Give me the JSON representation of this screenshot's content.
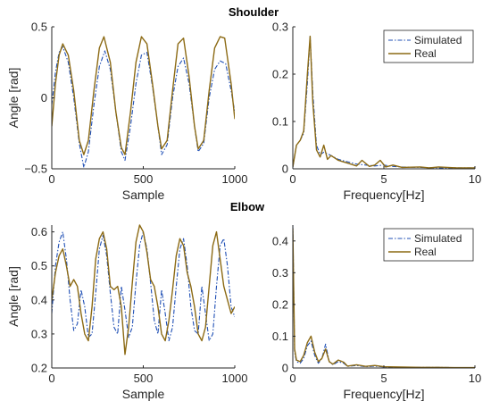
{
  "colors": {
    "simulated": "#1f4fb5",
    "real": "#8c6a14",
    "axis": "#262626"
  },
  "chart_data": [
    {
      "id": "shoulder-time",
      "type": "line",
      "section_title": "Shoulder",
      "xlabel": "Sample",
      "ylabel": "Angle [rad]",
      "xlim": [
        0,
        1000
      ],
      "ylim": [
        -0.5,
        0.5
      ],
      "xticks": [
        0,
        500,
        1000
      ],
      "yticks": [
        -0.5,
        0,
        0.5
      ],
      "xtick_labels": [
        "0",
        "500",
        "1000"
      ],
      "ytick_labels": [
        "−0.5",
        "0",
        "0.5"
      ],
      "grid": false,
      "legend": null,
      "series": [
        {
          "name": "Simulated",
          "style": "dashdot",
          "x": [
            0,
            20,
            40,
            60,
            90,
            120,
            150,
            175,
            200,
            230,
            260,
            290,
            320,
            350,
            380,
            400,
            430,
            460,
            490,
            520,
            550,
            580,
            600,
            630,
            660,
            690,
            720,
            750,
            780,
            800,
            830,
            860,
            890,
            920,
            950,
            980,
            1000
          ],
          "y": [
            -0.05,
            0.18,
            0.32,
            0.36,
            0.25,
            0.0,
            -0.32,
            -0.49,
            -0.38,
            -0.05,
            0.22,
            0.33,
            0.2,
            -0.1,
            -0.38,
            -0.44,
            -0.2,
            0.1,
            0.3,
            0.32,
            0.08,
            -0.2,
            -0.4,
            -0.33,
            0.0,
            0.22,
            0.28,
            0.1,
            -0.2,
            -0.38,
            -0.32,
            0.0,
            0.2,
            0.26,
            0.24,
            0.05,
            -0.1
          ]
        },
        {
          "name": "Real",
          "style": "solid",
          "x": [
            0,
            20,
            40,
            60,
            90,
            120,
            150,
            175,
            200,
            230,
            260,
            285,
            320,
            350,
            380,
            400,
            430,
            460,
            490,
            520,
            550,
            580,
            600,
            630,
            660,
            690,
            720,
            750,
            780,
            800,
            830,
            860,
            890,
            920,
            945,
            980,
            1000
          ],
          "y": [
            -0.2,
            0.1,
            0.3,
            0.38,
            0.3,
            0.05,
            -0.3,
            -0.4,
            -0.3,
            0.05,
            0.35,
            0.43,
            0.25,
            -0.1,
            -0.35,
            -0.4,
            -0.1,
            0.25,
            0.43,
            0.38,
            0.1,
            -0.2,
            -0.36,
            -0.3,
            0.05,
            0.38,
            0.42,
            0.15,
            -0.2,
            -0.36,
            -0.3,
            0.05,
            0.35,
            0.43,
            0.42,
            0.1,
            -0.15
          ]
        }
      ]
    },
    {
      "id": "shoulder-freq",
      "type": "line",
      "xlabel": "Frequency[Hz]",
      "ylabel": "",
      "xlim": [
        0,
        10
      ],
      "ylim": [
        0,
        0.3
      ],
      "xticks": [
        0,
        5,
        10
      ],
      "yticks": [
        0,
        0.1,
        0.2,
        0.3
      ],
      "xtick_labels": [
        "0",
        "5",
        "10"
      ],
      "ytick_labels": [
        "0",
        "0.1",
        "0.2",
        "0.3"
      ],
      "grid": false,
      "legend": "top-right",
      "series": [
        {
          "name": "Simulated",
          "style": "dashdot",
          "x": [
            0,
            0.2,
            0.4,
            0.6,
            0.8,
            0.95,
            1.1,
            1.3,
            1.5,
            1.7,
            2.0,
            2.5,
            3.0,
            3.5,
            4.0,
            4.5,
            5.0,
            5.5,
            6.0,
            7.0,
            8.0,
            9.0,
            10.0
          ],
          "y": [
            0.003,
            0.05,
            0.06,
            0.075,
            0.18,
            0.28,
            0.16,
            0.05,
            0.03,
            0.035,
            0.03,
            0.02,
            0.015,
            0.01,
            0.008,
            0.006,
            0.008,
            0.005,
            0.004,
            0.003,
            0.002,
            0.002,
            0.002
          ]
        },
        {
          "name": "Real",
          "style": "solid",
          "x": [
            0,
            0.2,
            0.4,
            0.6,
            0.8,
            0.95,
            1.1,
            1.3,
            1.5,
            1.7,
            1.9,
            2.1,
            2.5,
            3.0,
            3.5,
            3.8,
            4.2,
            4.5,
            4.8,
            5.1,
            5.5,
            6.0,
            7.0,
            7.5,
            8.0,
            9.0,
            10.0
          ],
          "y": [
            0.004,
            0.05,
            0.06,
            0.08,
            0.2,
            0.28,
            0.14,
            0.04,
            0.025,
            0.05,
            0.02,
            0.028,
            0.018,
            0.012,
            0.006,
            0.018,
            0.005,
            0.008,
            0.018,
            0.004,
            0.008,
            0.003,
            0.004,
            0.002,
            0.004,
            0.002,
            0.002
          ]
        }
      ]
    },
    {
      "id": "elbow-time",
      "type": "line",
      "section_title": "Elbow",
      "xlabel": "Sample",
      "ylabel": "Angle [rad]",
      "xlim": [
        0,
        1000
      ],
      "ylim": [
        0.2,
        0.62
      ],
      "xticks": [
        0,
        500,
        1000
      ],
      "yticks": [
        0.2,
        0.3,
        0.4,
        0.5,
        0.6
      ],
      "xtick_labels": [
        "0",
        "500",
        "1000"
      ],
      "ytick_labels": [
        "0.2",
        "0.3",
        "0.4",
        "0.5",
        "0.6"
      ],
      "grid": false,
      "legend": null,
      "series": [
        {
          "name": "Simulated",
          "style": "dashdot",
          "x": [
            0,
            20,
            40,
            60,
            80,
            100,
            120,
            140,
            160,
            180,
            200,
            220,
            240,
            260,
            280,
            300,
            320,
            340,
            360,
            380,
            400,
            420,
            440,
            460,
            480,
            500,
            520,
            540,
            560,
            580,
            600,
            620,
            640,
            660,
            680,
            700,
            720,
            740,
            760,
            780,
            800,
            820,
            840,
            860,
            880,
            900,
            920,
            940,
            960,
            980,
            1000
          ],
          "y": [
            0.36,
            0.5,
            0.57,
            0.6,
            0.52,
            0.4,
            0.31,
            0.33,
            0.43,
            0.38,
            0.29,
            0.3,
            0.42,
            0.55,
            0.59,
            0.53,
            0.42,
            0.32,
            0.3,
            0.44,
            0.37,
            0.29,
            0.32,
            0.45,
            0.56,
            0.6,
            0.55,
            0.45,
            0.34,
            0.3,
            0.43,
            0.36,
            0.28,
            0.32,
            0.44,
            0.55,
            0.58,
            0.5,
            0.38,
            0.31,
            0.3,
            0.44,
            0.36,
            0.28,
            0.3,
            0.44,
            0.56,
            0.58,
            0.5,
            0.38,
            0.35
          ]
        },
        {
          "name": "Real",
          "style": "solid",
          "x": [
            0,
            20,
            40,
            60,
            80,
            100,
            120,
            140,
            160,
            180,
            200,
            220,
            240,
            260,
            280,
            300,
            320,
            340,
            360,
            380,
            400,
            420,
            440,
            460,
            480,
            500,
            520,
            540,
            560,
            580,
            600,
            620,
            640,
            660,
            680,
            700,
            720,
            740,
            760,
            780,
            800,
            820,
            840,
            860,
            880,
            900,
            920,
            940,
            960,
            980,
            1000
          ],
          "y": [
            0.4,
            0.48,
            0.53,
            0.55,
            0.5,
            0.44,
            0.46,
            0.44,
            0.36,
            0.3,
            0.28,
            0.38,
            0.52,
            0.58,
            0.6,
            0.55,
            0.44,
            0.43,
            0.44,
            0.38,
            0.24,
            0.32,
            0.45,
            0.57,
            0.62,
            0.6,
            0.54,
            0.46,
            0.44,
            0.38,
            0.3,
            0.28,
            0.34,
            0.43,
            0.53,
            0.58,
            0.56,
            0.48,
            0.44,
            0.38,
            0.3,
            0.28,
            0.32,
            0.44,
            0.56,
            0.6,
            0.52,
            0.44,
            0.4,
            0.36,
            0.38
          ]
        }
      ]
    },
    {
      "id": "elbow-freq",
      "type": "line",
      "xlabel": "Frequency[Hz]",
      "ylabel": "",
      "xlim": [
        0,
        10
      ],
      "ylim": [
        0,
        0.45
      ],
      "xticks": [
        0,
        5,
        10
      ],
      "yticks": [
        0,
        0.1,
        0.2,
        0.3,
        0.4
      ],
      "xtick_labels": [
        "0",
        "5",
        "10"
      ],
      "ytick_labels": [
        "0",
        "0.1",
        "0.2",
        "0.3",
        "0.4"
      ],
      "grid": false,
      "legend": "top-right",
      "series": [
        {
          "name": "Simulated",
          "style": "dashdot",
          "x": [
            0,
            0.1,
            0.2,
            0.4,
            0.6,
            0.8,
            1.0,
            1.2,
            1.4,
            1.6,
            1.8,
            2.0,
            2.2,
            2.5,
            2.8,
            3.0,
            3.5,
            4.0,
            4.5,
            5.0,
            6.0,
            7.0,
            8.0,
            9.0,
            10.0
          ],
          "y": [
            0.45,
            0.05,
            0.02,
            0.015,
            0.03,
            0.07,
            0.085,
            0.04,
            0.015,
            0.03,
            0.075,
            0.02,
            0.01,
            0.02,
            0.015,
            0.005,
            0.008,
            0.004,
            0.006,
            0.003,
            0.002,
            0.002,
            0.002,
            0.001,
            0.001
          ]
        },
        {
          "name": "Real",
          "style": "solid",
          "x": [
            0,
            0.1,
            0.2,
            0.4,
            0.6,
            0.8,
            1.0,
            1.2,
            1.4,
            1.6,
            1.8,
            2.0,
            2.2,
            2.5,
            2.8,
            3.0,
            3.5,
            4.0,
            4.5,
            5.0,
            6.0,
            7.0,
            8.0,
            9.0,
            10.0
          ],
          "y": [
            0.44,
            0.06,
            0.025,
            0.02,
            0.04,
            0.08,
            0.1,
            0.05,
            0.02,
            0.03,
            0.06,
            0.02,
            0.012,
            0.025,
            0.018,
            0.006,
            0.01,
            0.005,
            0.008,
            0.004,
            0.003,
            0.002,
            0.002,
            0.001,
            0.001
          ]
        }
      ]
    }
  ]
}
